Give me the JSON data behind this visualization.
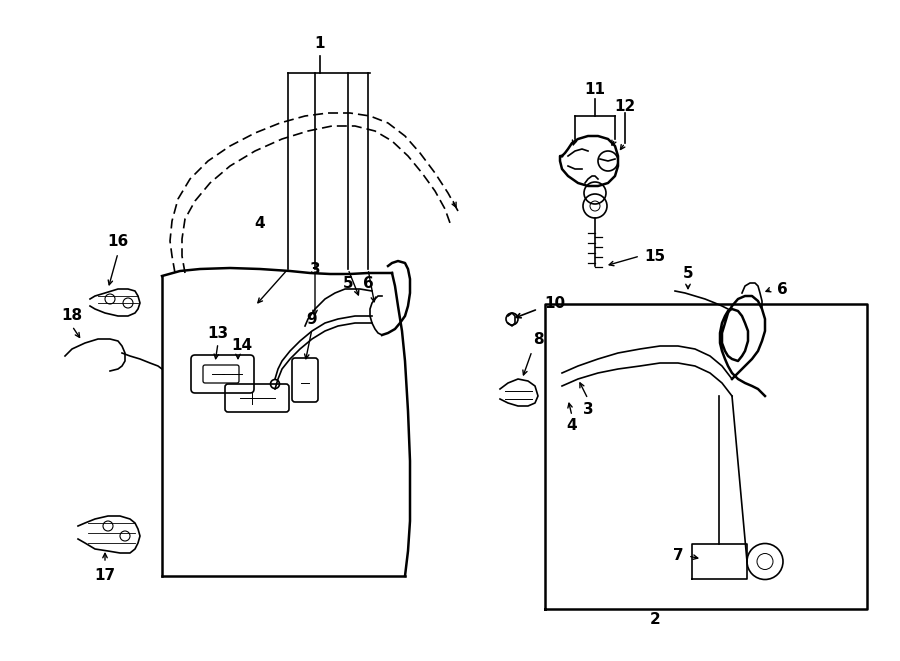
{
  "bg_color": "#ffffff",
  "line_color": "#000000",
  "fig_width": 9.0,
  "fig_height": 6.61,
  "dpi": 100,
  "label_fontsize": 11,
  "lw": 1.2,
  "lw_thick": 1.8
}
